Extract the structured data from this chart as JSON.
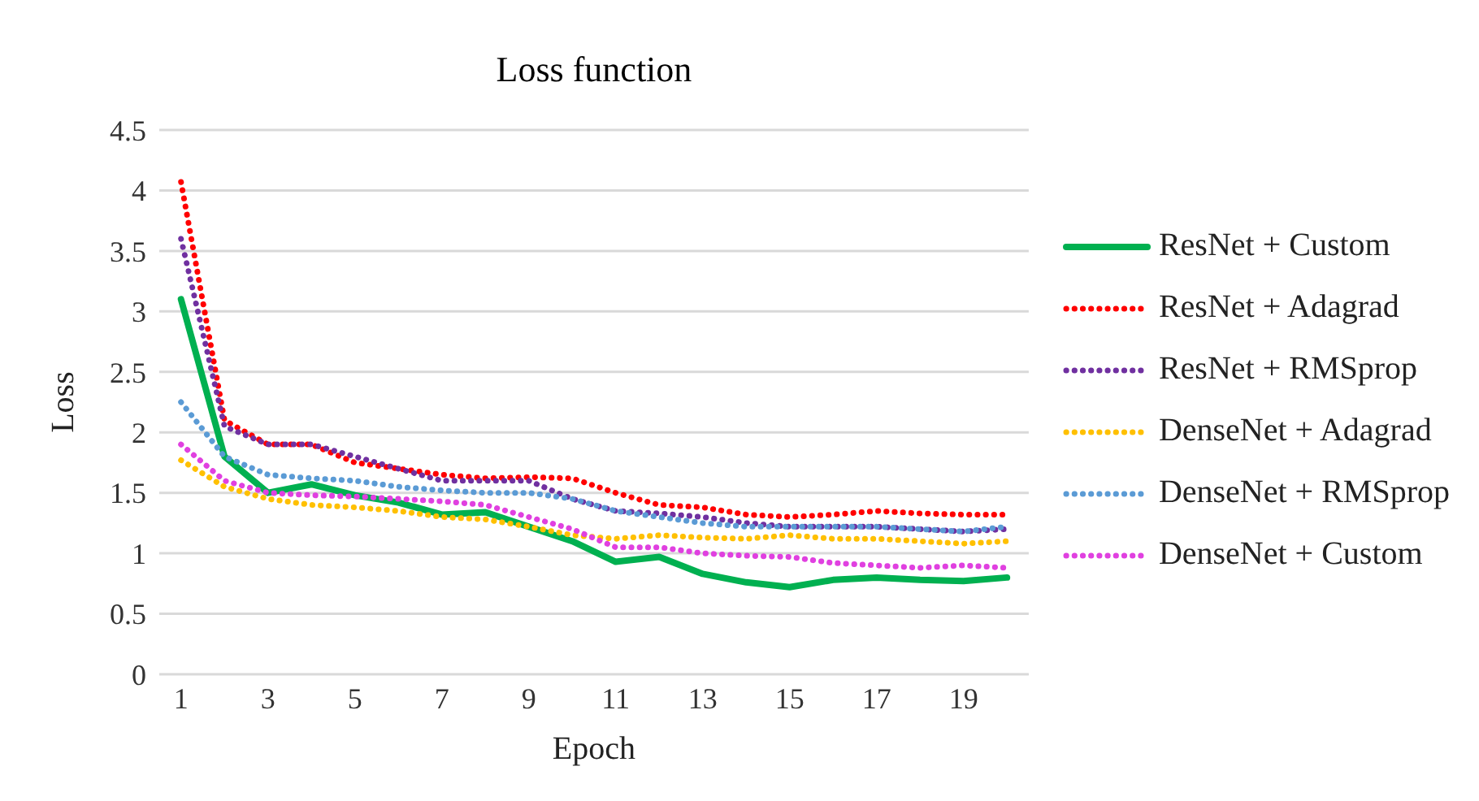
{
  "chart_data": {
    "type": "line",
    "title": "Loss function",
    "xlabel": "Epoch",
    "ylabel": "Loss",
    "x": [
      1,
      2,
      3,
      4,
      5,
      6,
      7,
      8,
      9,
      10,
      11,
      12,
      13,
      14,
      15,
      16,
      17,
      18,
      19,
      20
    ],
    "xlim": [
      0.5,
      20.5
    ],
    "xticks": [
      1,
      3,
      5,
      7,
      9,
      11,
      13,
      15,
      17,
      19
    ],
    "ylim": [
      0,
      4.5
    ],
    "yticks": [
      0,
      0.5,
      1,
      1.5,
      2,
      2.5,
      3,
      3.5,
      4,
      4.5
    ],
    "grid": "y",
    "legend": "right",
    "marker": "none",
    "series": [
      {
        "name": "ResNet + Custom",
        "color": "#00b050",
        "line_style": "solid",
        "values": [
          3.1,
          1.8,
          1.5,
          1.57,
          1.48,
          1.42,
          1.32,
          1.34,
          1.22,
          1.1,
          0.93,
          0.97,
          0.83,
          0.76,
          0.72,
          0.78,
          0.8,
          0.78,
          0.77,
          0.8
        ]
      },
      {
        "name": "ResNet + Adagrad",
        "color": "#ff0000",
        "line_style": "dotted",
        "values": [
          4.07,
          2.1,
          1.9,
          1.9,
          1.75,
          1.7,
          1.65,
          1.62,
          1.63,
          1.62,
          1.5,
          1.4,
          1.38,
          1.32,
          1.3,
          1.32,
          1.35,
          1.33,
          1.32,
          1.32
        ]
      },
      {
        "name": "ResNet + RMSprop",
        "color": "#7030a0",
        "line_style": "dotted",
        "values": [
          3.6,
          2.05,
          1.9,
          1.9,
          1.8,
          1.7,
          1.6,
          1.6,
          1.6,
          1.45,
          1.35,
          1.33,
          1.3,
          1.25,
          1.22,
          1.22,
          1.22,
          1.2,
          1.18,
          1.2
        ]
      },
      {
        "name": "DenseNet + Adagrad",
        "color": "#ffc000",
        "line_style": "dotted",
        "values": [
          1.77,
          1.55,
          1.45,
          1.4,
          1.38,
          1.35,
          1.3,
          1.28,
          1.22,
          1.15,
          1.12,
          1.15,
          1.13,
          1.12,
          1.15,
          1.12,
          1.12,
          1.1,
          1.08,
          1.1
        ]
      },
      {
        "name": "DenseNet + RMSprop",
        "color": "#5b9bd5",
        "line_style": "dotted",
        "values": [
          2.25,
          1.8,
          1.65,
          1.62,
          1.6,
          1.55,
          1.52,
          1.5,
          1.5,
          1.45,
          1.35,
          1.3,
          1.25,
          1.22,
          1.22,
          1.22,
          1.22,
          1.2,
          1.18,
          1.22
        ]
      },
      {
        "name": "DenseNet + Custom",
        "color": "#e040e0",
        "line_style": "dotted",
        "values": [
          1.9,
          1.6,
          1.5,
          1.48,
          1.47,
          1.45,
          1.43,
          1.4,
          1.3,
          1.2,
          1.05,
          1.05,
          1.0,
          0.98,
          0.97,
          0.92,
          0.9,
          0.88,
          0.9,
          0.88
        ]
      }
    ]
  }
}
